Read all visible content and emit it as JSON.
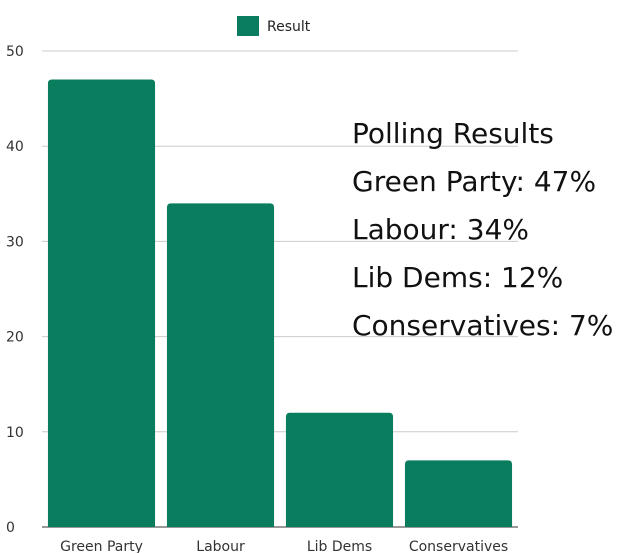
{
  "chart_data": {
    "type": "bar",
    "categories": [
      "Green Party",
      "Labour",
      "Lib Dems",
      "Conservatives"
    ],
    "series": [
      {
        "name": "Result",
        "values": [
          47,
          34,
          12,
          7
        ],
        "color": "#0a7d5e"
      }
    ],
    "ylim": [
      0,
      50
    ],
    "yticks": [
      0,
      10,
      20,
      30,
      40,
      50
    ],
    "grid": true,
    "legend": "top-center",
    "annotation": {
      "title": "Polling Results",
      "lines": [
        "Green Party: 47%",
        "Labour: 34%",
        "Lib Dems: 12%",
        "Conservatives: 7%"
      ]
    }
  }
}
